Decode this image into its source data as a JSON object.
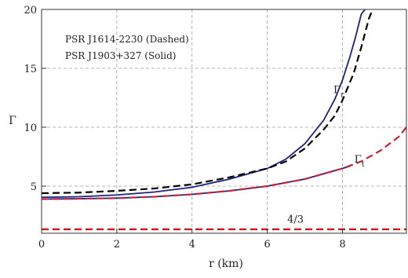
{
  "chart_data": {
    "type": "line",
    "title": "",
    "xlabel": "r (km)",
    "ylabel": "Γ",
    "xlim": [
      0,
      9.7
    ],
    "ylim": [
      1,
      20
    ],
    "xticks": [
      0,
      2,
      4,
      6,
      8
    ],
    "yticks": [
      5,
      10,
      15,
      20
    ],
    "grid": true,
    "legend_lines": [
      "PSR J1614-2230 (Dashed)",
      "PSR J1903+327 (Solid)"
    ],
    "legend_position": "top-left",
    "annotations": [
      {
        "text": "Γr",
        "base": "Γ",
        "sub": "r",
        "x": 7.9,
        "y": 12.9
      },
      {
        "text": "Γt",
        "base": "Γ",
        "sub": "t",
        "x": 8.45,
        "y": 7.0
      },
      {
        "text": "4/3",
        "x": 6.75,
        "y": 1.9
      }
    ],
    "series": [
      {
        "curve": "Gamma_r",
        "source": "PSR J1903+327",
        "style": "solid",
        "color": "#1a237e",
        "x": [
          0,
          1,
          2,
          3,
          4,
          5,
          6,
          6.5,
          7,
          7.5,
          7.8,
          8.0,
          8.2,
          8.35,
          8.5,
          8.6
        ],
        "y": [
          4.05,
          4.1,
          4.25,
          4.5,
          4.9,
          5.6,
          6.5,
          7.3,
          8.6,
          10.6,
          12.4,
          14.0,
          16.0,
          17.7,
          19.6,
          20.0
        ]
      },
      {
        "curve": "Gamma_r",
        "source": "PSR J1614-2230",
        "style": "dashed",
        "color": "#000000",
        "x": [
          0,
          1,
          2,
          3,
          4,
          5,
          6,
          6.5,
          7,
          7.5,
          7.8,
          8.0,
          8.3,
          8.5,
          8.7,
          8.8
        ],
        "y": [
          4.4,
          4.45,
          4.6,
          4.8,
          5.15,
          5.75,
          6.5,
          7.1,
          8.2,
          9.8,
          11.0,
          12.3,
          14.6,
          16.8,
          19.2,
          20.0
        ]
      },
      {
        "curve": "Gamma_t",
        "source": "PSR J1903+327",
        "style": "solid",
        "color": "#1a237e",
        "x": [
          0,
          1,
          2,
          3,
          4,
          5,
          6,
          7,
          8,
          8.2
        ],
        "y": [
          3.9,
          3.93,
          3.98,
          4.1,
          4.3,
          4.6,
          5.0,
          5.6,
          6.5,
          6.7
        ]
      },
      {
        "curve": "Gamma_t",
        "source": "PSR J1614-2230",
        "style": "dashed",
        "color": "#cc1f3a",
        "x": [
          0,
          1,
          2,
          3,
          4,
          5,
          6,
          7,
          8,
          8.5,
          9.0,
          9.5,
          9.7
        ],
        "y": [
          3.9,
          3.93,
          3.98,
          4.1,
          4.3,
          4.6,
          5.0,
          5.6,
          6.5,
          7.1,
          8.0,
          9.2,
          10.0
        ]
      },
      {
        "curve": "4/3",
        "style": "dashed",
        "color": "#e00000",
        "x": [
          0,
          9.7
        ],
        "y": [
          1.333,
          1.333
        ]
      }
    ]
  }
}
